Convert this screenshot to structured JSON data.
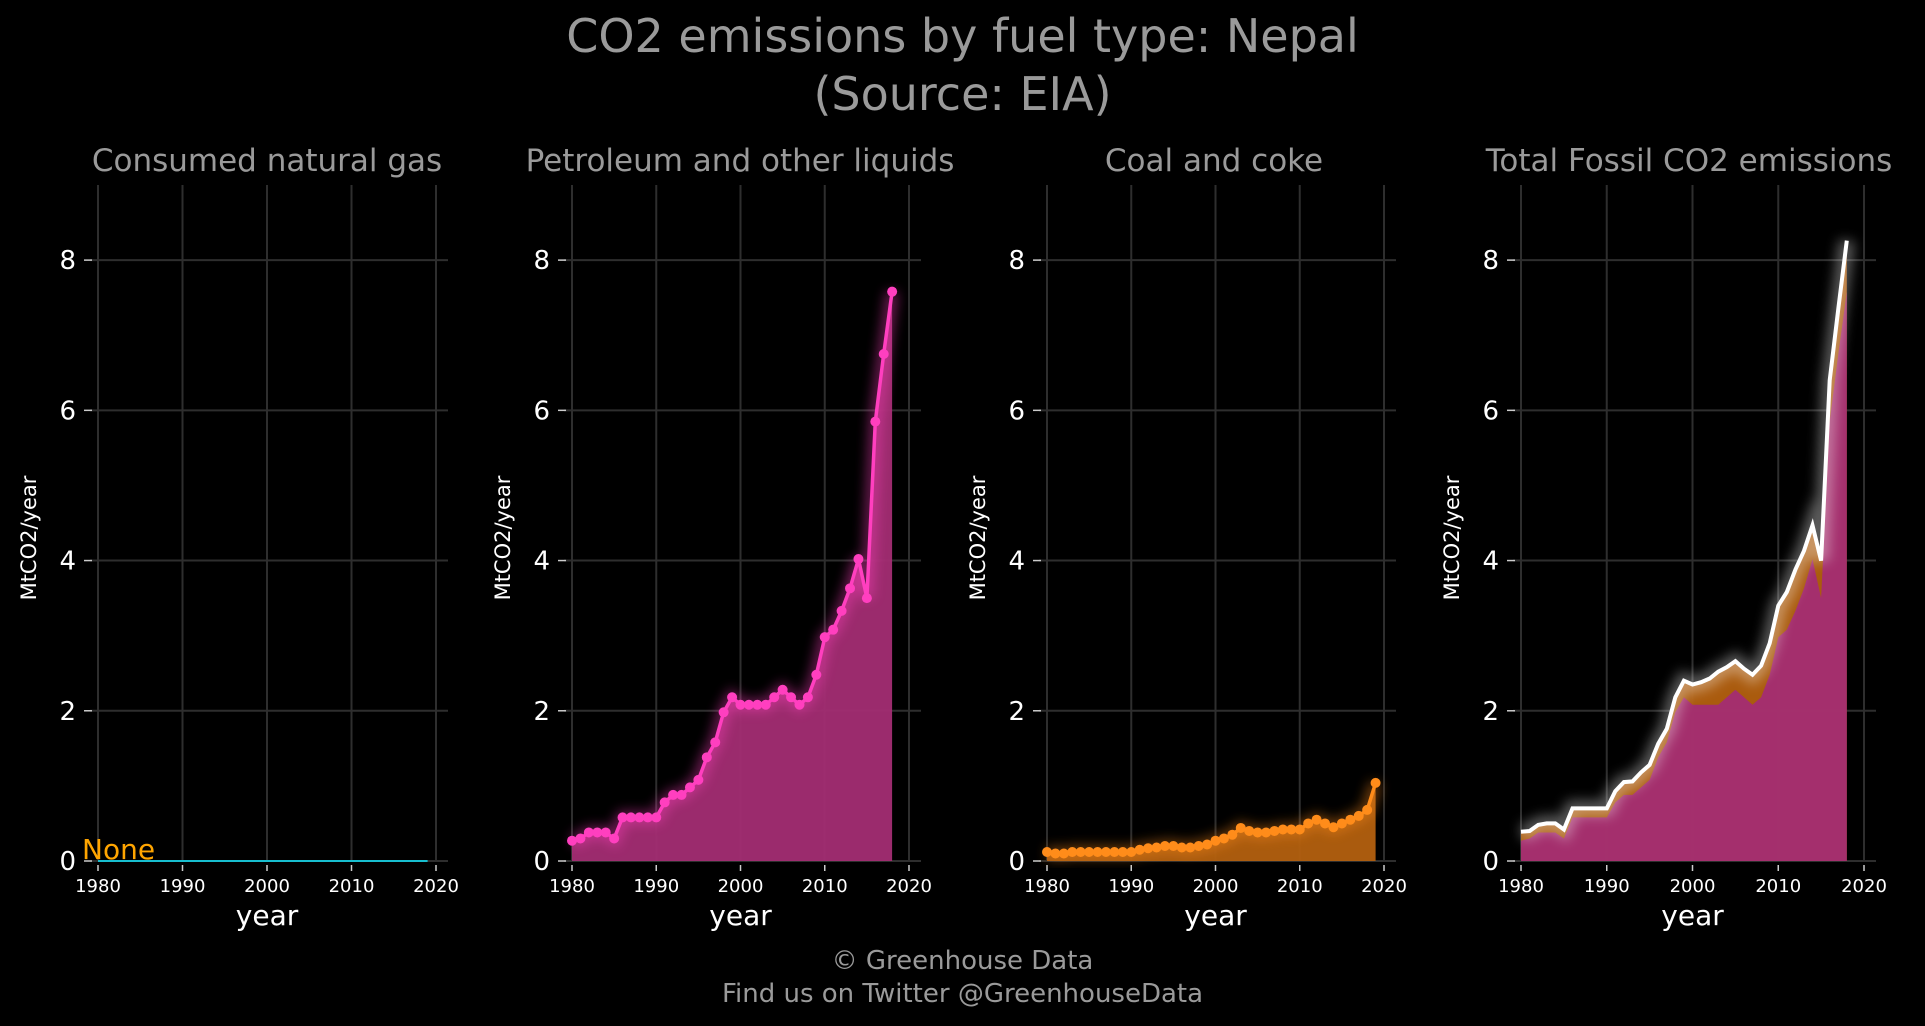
{
  "title_line1": "CO2 emissions by fuel type: Nepal",
  "title_line2": "(Source: EIA)",
  "footer_line1": "© Greenhouse Data",
  "footer_line2": "Find us on Twitter @GreenhouseData",
  "colors": {
    "gas": "#17becf",
    "petroleum": "#ff3fbf",
    "petroleum_fill": "#a32d73",
    "coal": "#ff8c1a",
    "coal_fill": "#b3600f",
    "total": "#ffffff",
    "none": "#ffa500",
    "grid": "#2e2e2e",
    "background": "#000000"
  },
  "chart_data": [
    {
      "type": "line",
      "title": "Consumed natural gas",
      "xlabel": "year",
      "ylabel": "MtCO2/year",
      "xlim": [
        1980,
        2020
      ],
      "ylim": [
        0,
        9
      ],
      "xticks": [
        "1980",
        "1990",
        "2000",
        "2010",
        "2020"
      ],
      "yticks": [
        "0",
        "2",
        "4",
        "6",
        "8"
      ],
      "annotation": "None",
      "series": [
        {
          "x": [
            1980,
            2019
          ],
          "y": [
            0,
            0
          ]
        }
      ]
    },
    {
      "type": "area",
      "title": "Petroleum and other liquids",
      "xlabel": "year",
      "ylabel": "MtCO2/year",
      "xlim": [
        1980,
        2020
      ],
      "ylim": [
        0,
        9
      ],
      "xticks": [
        "1980",
        "1990",
        "2000",
        "2010",
        "2020"
      ],
      "yticks": [
        "0",
        "2",
        "4",
        "6",
        "8"
      ],
      "series": [
        {
          "x": [
            1980,
            1981,
            1982,
            1983,
            1984,
            1985,
            1986,
            1987,
            1988,
            1989,
            1990,
            1991,
            1992,
            1993,
            1994,
            1995,
            1996,
            1997,
            1998,
            1999,
            2000,
            2001,
            2002,
            2003,
            2004,
            2005,
            2006,
            2007,
            2008,
            2009,
            2010,
            2011,
            2012,
            2013,
            2014,
            2015,
            2016,
            2017,
            2018
          ],
          "y": [
            0.27,
            0.3,
            0.38,
            0.38,
            0.38,
            0.3,
            0.58,
            0.58,
            0.58,
            0.58,
            0.58,
            0.78,
            0.88,
            0.88,
            0.98,
            1.08,
            1.38,
            1.58,
            1.98,
            2.18,
            2.08,
            2.08,
            2.08,
            2.08,
            2.18,
            2.28,
            2.18,
            2.08,
            2.18,
            2.48,
            2.98,
            3.08,
            3.33,
            3.63,
            4.02,
            3.5,
            5.85,
            6.75,
            7.58
          ]
        }
      ]
    },
    {
      "type": "area",
      "title": "Coal and coke",
      "xlabel": "year",
      "ylabel": "MtCO2/year",
      "xlim": [
        1980,
        2020
      ],
      "ylim": [
        0,
        9
      ],
      "xticks": [
        "1980",
        "1990",
        "2000",
        "2010",
        "2020"
      ],
      "yticks": [
        "0",
        "2",
        "4",
        "6",
        "8"
      ],
      "series": [
        {
          "x": [
            1980,
            1981,
            1982,
            1983,
            1984,
            1985,
            1986,
            1987,
            1988,
            1989,
            1990,
            1991,
            1992,
            1993,
            1994,
            1995,
            1996,
            1997,
            1998,
            1999,
            2000,
            2001,
            2002,
            2003,
            2004,
            2005,
            2006,
            2007,
            2008,
            2009,
            2010,
            2011,
            2012,
            2013,
            2014,
            2015,
            2016,
            2017,
            2018,
            2019
          ],
          "y": [
            0.12,
            0.1,
            0.1,
            0.12,
            0.12,
            0.12,
            0.12,
            0.12,
            0.12,
            0.12,
            0.12,
            0.15,
            0.17,
            0.18,
            0.2,
            0.2,
            0.18,
            0.18,
            0.2,
            0.22,
            0.27,
            0.3,
            0.35,
            0.44,
            0.4,
            0.38,
            0.38,
            0.4,
            0.42,
            0.42,
            0.42,
            0.5,
            0.55,
            0.5,
            0.45,
            0.5,
            0.55,
            0.6,
            0.68,
            1.04
          ]
        }
      ]
    },
    {
      "type": "area",
      "title": "Total Fossil CO2 emissions",
      "xlabel": "year",
      "ylabel": "MtCO2/year",
      "xlim": [
        1980,
        2020
      ],
      "ylim": [
        0,
        9
      ],
      "xticks": [
        "1980",
        "1990",
        "2000",
        "2010",
        "2020"
      ],
      "yticks": [
        "0",
        "2",
        "4",
        "6",
        "8"
      ],
      "series": [
        {
          "name": "",
          "x": [
            1980,
            1981,
            1982,
            1983,
            1984,
            1985,
            1986,
            1987,
            1988,
            1989,
            1990,
            1991,
            1992,
            1993,
            1994,
            1995,
            1996,
            1997,
            1998,
            1999,
            2000,
            2001,
            2002,
            2003,
            2004,
            2005,
            2006,
            2007,
            2008,
            2009,
            2010,
            2011,
            2012,
            2013,
            2014,
            2015,
            2016,
            2017,
            2018
          ],
          "y": [
            0.39,
            0.4,
            0.48,
            0.5,
            0.5,
            0.42,
            0.7,
            0.7,
            0.7,
            0.7,
            0.7,
            0.93,
            1.05,
            1.06,
            1.18,
            1.28,
            1.56,
            1.76,
            2.18,
            2.4,
            2.35,
            2.38,
            2.43,
            2.52,
            2.58,
            2.66,
            2.56,
            2.48,
            2.6,
            2.9,
            3.4,
            3.58,
            3.88,
            4.13,
            4.47,
            4.0,
            6.4,
            7.35,
            8.26
          ]
        }
      ]
    }
  ]
}
